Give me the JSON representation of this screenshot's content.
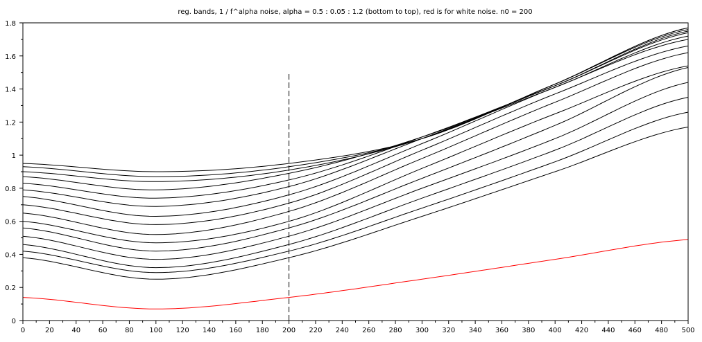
{
  "chart_data": {
    "type": "line",
    "title": "reg. bands, 1 / f^alpha noise, alpha = 0.5 : 0.05 : 1.2 (bottom to top), red is for white noise. n0 = 200",
    "xlabel": "",
    "ylabel": "",
    "xlim": [
      0,
      500
    ],
    "ylim": [
      0,
      1.8
    ],
    "x_ticks": [
      0,
      20,
      40,
      60,
      80,
      100,
      120,
      140,
      160,
      180,
      200,
      220,
      240,
      260,
      280,
      300,
      320,
      340,
      360,
      380,
      400,
      420,
      440,
      460,
      480,
      500
    ],
    "y_ticks": [
      0,
      0.2,
      0.4,
      0.6,
      0.8,
      1,
      1.2,
      1.4,
      1.6,
      1.8
    ],
    "y_tick_labels": [
      "0",
      "0.2",
      "0.4",
      "0.6",
      "0.8",
      "1",
      "1.2",
      "1.4",
      "1.6",
      "1.8"
    ],
    "grid": false,
    "line_color": "#000000",
    "white_noise_color": "#ff0000",
    "vline": {
      "x": 200,
      "y_from": 0,
      "y_to": 1.5,
      "style": "dashed"
    },
    "x": [
      0,
      100,
      200,
      300,
      400,
      500
    ],
    "series": [
      {
        "values": [
          0.38,
          0.25,
          0.38,
          0.63,
          0.9,
          1.17
        ]
      },
      {
        "values": [
          0.42,
          0.29,
          0.42,
          0.68,
          0.96,
          1.26
        ]
      },
      {
        "values": [
          0.46,
          0.32,
          0.46,
          0.74,
          1.03,
          1.35
        ]
      },
      {
        "values": [
          0.51,
          0.37,
          0.51,
          0.8,
          1.1,
          1.44
        ]
      },
      {
        "values": [
          0.56,
          0.42,
          0.56,
          0.86,
          1.18,
          1.53
        ]
      },
      {
        "values": [
          0.6,
          0.47,
          0.6,
          0.92,
          1.25,
          1.54
        ]
      },
      {
        "values": [
          0.65,
          0.52,
          0.66,
          0.98,
          1.32,
          1.62
        ]
      },
      {
        "values": [
          0.7,
          0.58,
          0.71,
          1.03,
          1.37,
          1.66
        ]
      },
      {
        "values": [
          0.75,
          0.63,
          0.76,
          1.07,
          1.41,
          1.7
        ]
      },
      {
        "values": [
          0.79,
          0.69,
          0.81,
          1.1,
          1.41,
          1.72
        ]
      },
      {
        "values": [
          0.83,
          0.74,
          0.85,
          1.11,
          1.42,
          1.74
        ]
      },
      {
        "values": [
          0.87,
          0.79,
          0.89,
          1.11,
          1.42,
          1.75
        ]
      },
      {
        "values": [
          0.9,
          0.84,
          0.91,
          1.1,
          1.43,
          1.76
        ]
      },
      {
        "values": [
          0.93,
          0.87,
          0.93,
          1.1,
          1.43,
          1.77
        ]
      },
      {
        "values": [
          0.95,
          0.9,
          0.95,
          1.1,
          1.43,
          1.77
        ]
      },
      {
        "values": [
          0.14,
          0.07,
          0.14,
          0.25,
          0.37,
          0.49
        ],
        "color": "#ff0000"
      }
    ]
  }
}
